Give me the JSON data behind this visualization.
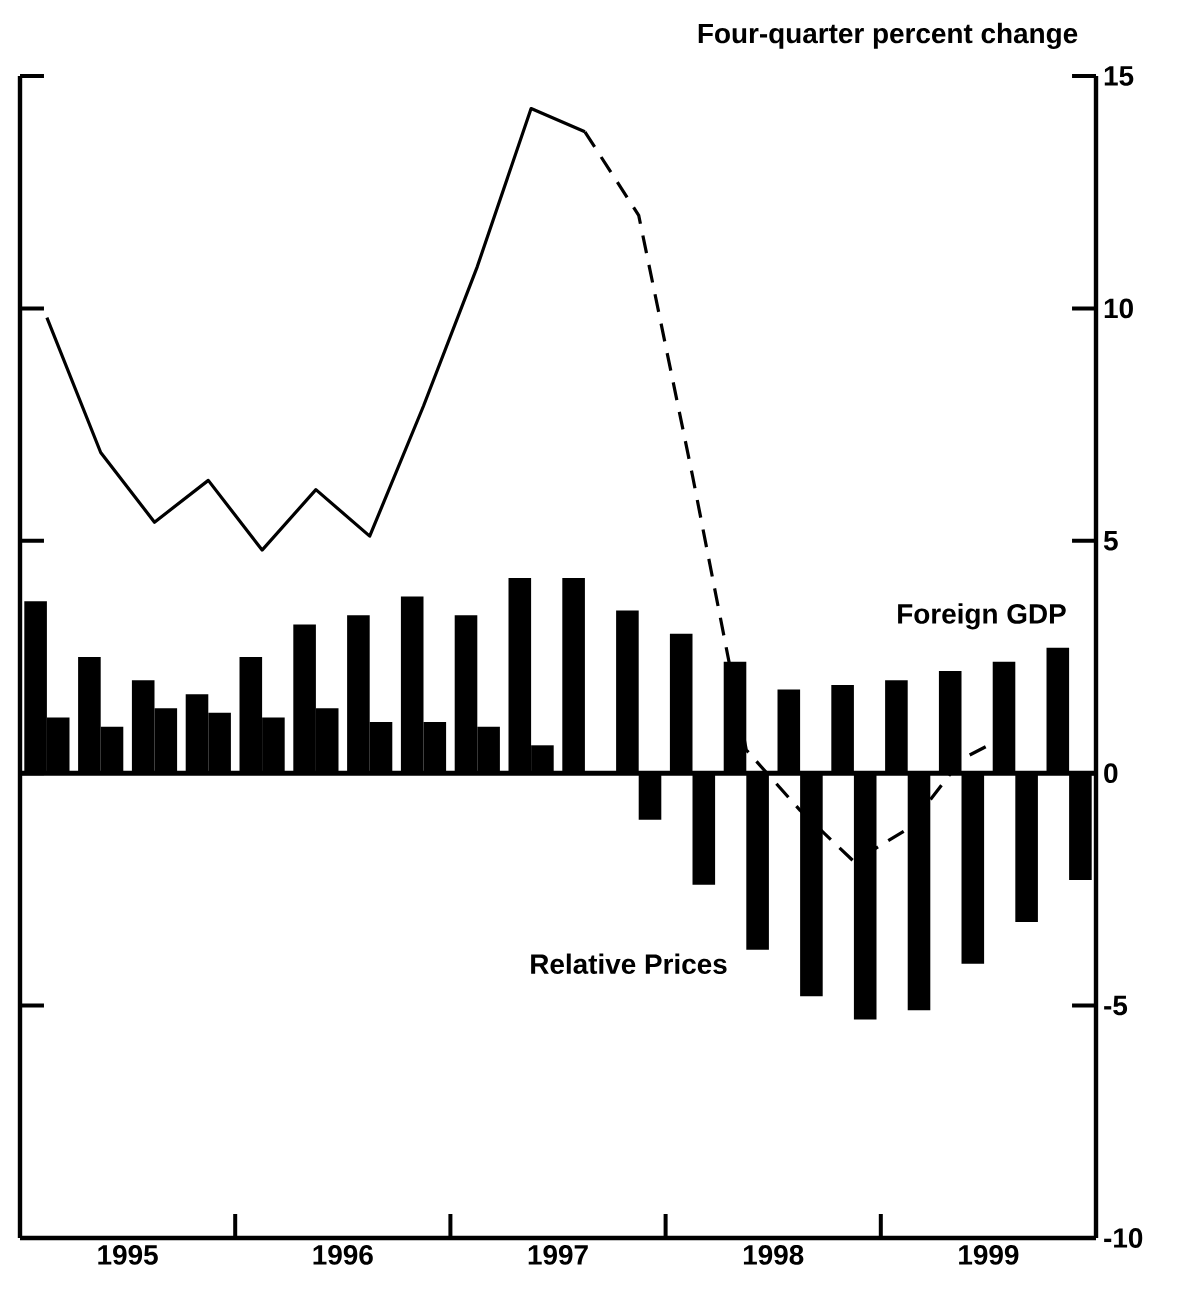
{
  "chart_data": {
    "type": "bar",
    "title": "Four-quarter percent change",
    "x": [
      1995.125,
      1995.375,
      1995.625,
      1995.875,
      1996.125,
      1996.375,
      1996.625,
      1996.875,
      1997.125,
      1997.375,
      1997.625,
      1997.875,
      1998.125,
      1998.375,
      1998.625,
      1998.875,
      1999.125,
      1999.375,
      1999.625,
      1999.875
    ],
    "series": [
      {
        "name": "Foreign GDP",
        "color": "#000000",
        "values": [
          3.7,
          2.5,
          2.0,
          1.7,
          2.5,
          3.2,
          3.4,
          3.8,
          3.4,
          4.2,
          4.2,
          3.5,
          3.0,
          2.4,
          1.8,
          1.9,
          2.0,
          2.2,
          2.4,
          2.7
        ]
      },
      {
        "name": "Relative Prices",
        "color": "#000000",
        "values": [
          1.2,
          1.0,
          1.4,
          1.3,
          1.2,
          1.4,
          1.1,
          1.1,
          1.0,
          0.6,
          null,
          -1.0,
          -2.4,
          -3.8,
          -4.8,
          -5.3,
          -5.1,
          -4.1,
          -3.2,
          -2.3
        ]
      },
      {
        "type": "line",
        "color": "#000000",
        "line_style": "solid",
        "x": [
          1995.125,
          1995.375,
          1995.625,
          1995.875,
          1996.125,
          1996.375,
          1996.625,
          1996.875,
          1997.125,
          1997.375,
          1997.625
        ],
        "values": [
          9.8,
          6.9,
          5.4,
          6.3,
          4.8,
          6.1,
          5.1,
          7.9,
          10.9,
          14.3,
          13.8
        ]
      },
      {
        "type": "line",
        "color": "#000000",
        "line_style": "dashed",
        "x": [
          1997.625,
          1997.875,
          1998.125,
          1998.375,
          1998.625,
          1998.875,
          1999.125,
          1999.375,
          1999.625
        ],
        "values": [
          13.8,
          12.0,
          6.4,
          0.5,
          -0.8,
          -1.9,
          -1.2,
          0.3,
          0.9
        ]
      }
    ],
    "xlim": [
      1995,
      2000
    ],
    "xticks": [
      {
        "value": 1995.5,
        "label": "1995"
      },
      {
        "value": 1996,
        "label": null
      },
      {
        "value": 1996.5,
        "label": "1996"
      },
      {
        "value": 1997,
        "label": null
      },
      {
        "value": 1997.5,
        "label": "1997"
      },
      {
        "value": 1998,
        "label": null
      },
      {
        "value": 1998.5,
        "label": "1998"
      },
      {
        "value": 1999,
        "label": null
      },
      {
        "value": 1999.5,
        "label": "1999"
      }
    ],
    "ylim": [
      -10,
      15
    ],
    "yticks": [
      -10,
      -5,
      0,
      5,
      10,
      15
    ],
    "legend": false
  }
}
